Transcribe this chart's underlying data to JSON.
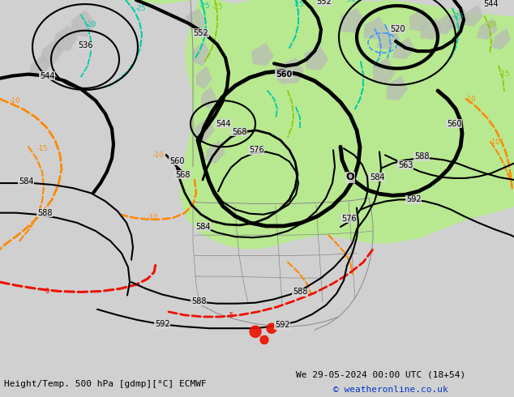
{
  "title_left": "Height/Temp. 500 hPa [gdmp][°C] ECMWF",
  "title_right": "We 29-05-2024 00:00 UTC (18+54)",
  "copyright": "© weatheronline.co.uk",
  "bg_color": "#d0d0d0",
  "ocean_color": "#d8d8d8",
  "land_gray": "#b8b8b8",
  "green_fill": "#b8e890",
  "z500_color": "#000000",
  "temp_orange": "#ff8800",
  "temp_cyan": "#00ccaa",
  "temp_lime": "#88cc00",
  "temp_blue": "#4499ff",
  "rain_red": "#ee1100",
  "border_color": "#888888"
}
